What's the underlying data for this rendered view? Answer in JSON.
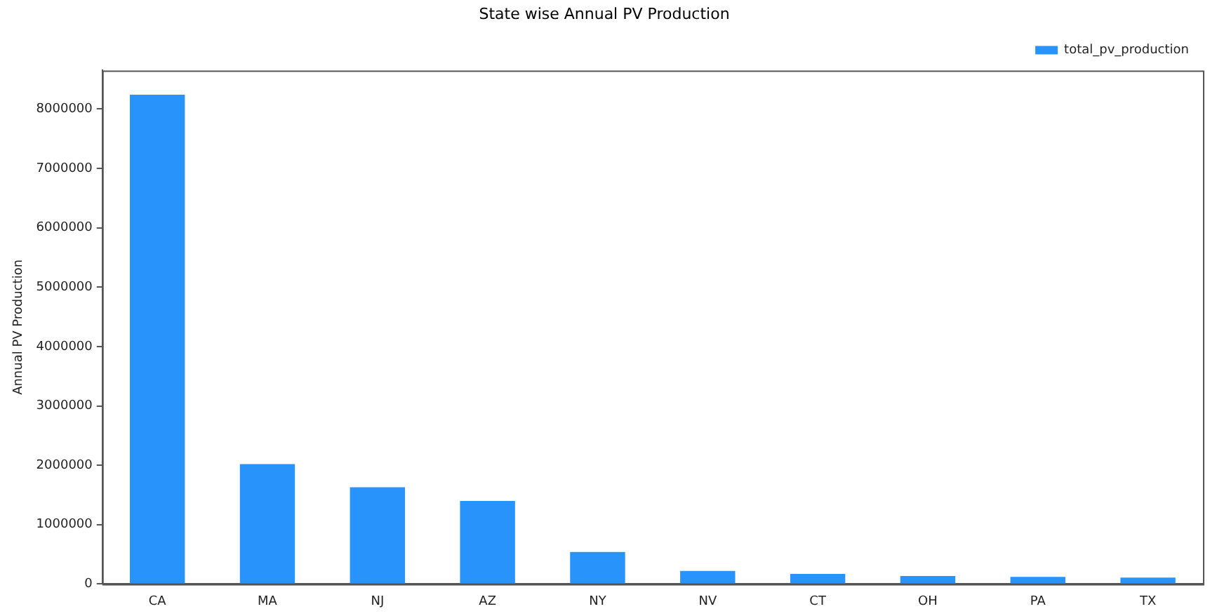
{
  "chart_data": {
    "type": "bar",
    "title": "State wise Annual PV Production",
    "ylabel": "Annual PV Production",
    "categories": [
      "CA",
      "MA",
      "NJ",
      "AZ",
      "NY",
      "NV",
      "CT",
      "OH",
      "PA",
      "TX"
    ],
    "series": [
      {
        "name": "total_pv_production",
        "color": "#2993fc",
        "values": [
          8240000,
          2020000,
          1630000,
          1400000,
          540000,
          220000,
          170000,
          135000,
          120000,
          107000
        ]
      }
    ],
    "ylim": [
      0,
      8650000
    ],
    "yticks": [
      0,
      1000000,
      2000000,
      3000000,
      4000000,
      5000000,
      6000000,
      7000000,
      8000000
    ],
    "grid": false,
    "legend": "top right"
  }
}
